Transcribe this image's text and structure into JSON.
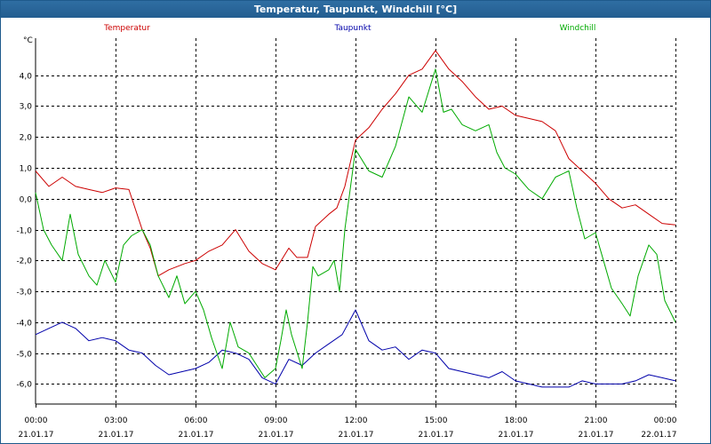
{
  "window": {
    "title": "Temperatur, Taupunkt, Windchill [°C]"
  },
  "chart_data": {
    "type": "line",
    "title": "Temperatur, Taupunkt, Windchill [°C]",
    "ylabel": "°C",
    "ylim": [
      -6.65,
      5.2
    ],
    "yticks": [
      4.0,
      3.0,
      2.0,
      1.0,
      0.0,
      -1.0,
      -2.0,
      -3.0,
      -4.0,
      -5.0,
      -6.0
    ],
    "ytick_labels": [
      "4,0",
      "3,0",
      "2,0",
      "1,0",
      "0,0",
      "-1,0",
      "-2,0",
      "-3,0",
      "-4,0",
      "-5,0",
      "-6,0"
    ],
    "xlim": [
      0,
      24
    ],
    "xticks": [
      0,
      3,
      6,
      9,
      12,
      15,
      18,
      21,
      24
    ],
    "xtick_times": [
      "00:00",
      "03:00",
      "06:00",
      "09:00",
      "12:00",
      "15:00",
      "18:00",
      "21:00",
      "00:00"
    ],
    "xtick_dates": [
      "21.01.17",
      "21.01.17",
      "21.01.17",
      "21.01.17",
      "21.01.17",
      "21.01.17",
      "21.01.17",
      "21.01.17",
      "22.01.17"
    ],
    "grid": true,
    "series": [
      {
        "name": "Temperatur",
        "color": "#cc0000",
        "x": [
          0,
          0.5,
          1,
          1.5,
          2,
          2.5,
          3,
          3.5,
          4,
          4.3,
          4.6,
          5,
          5.3,
          5.6,
          6,
          6.5,
          7,
          7.5,
          8,
          8.5,
          9,
          9.5,
          9.8,
          10.2,
          10.5,
          11,
          11.3,
          11.6,
          12,
          12.5,
          13,
          13.5,
          14,
          14.5,
          15,
          15.5,
          16,
          16.5,
          17,
          17.5,
          18,
          18.5,
          19,
          19.5,
          20,
          20.5,
          21,
          21.5,
          22,
          22.5,
          23,
          23.5,
          24
        ],
        "values": [
          0.9,
          0.4,
          0.7,
          0.4,
          0.3,
          0.2,
          0.35,
          0.3,
          -1.0,
          -1.6,
          -2.5,
          -2.3,
          -2.2,
          -2.1,
          -2.0,
          -1.7,
          -1.5,
          -1.0,
          -1.7,
          -2.1,
          -2.3,
          -1.6,
          -1.9,
          -1.9,
          -0.9,
          -0.5,
          -0.3,
          0.4,
          1.9,
          2.3,
          2.9,
          3.4,
          4.0,
          4.2,
          4.8,
          4.2,
          3.8,
          3.3,
          2.9,
          3.0,
          2.7,
          2.6,
          2.5,
          2.2,
          1.3,
          0.9,
          0.5,
          0.0,
          -0.3,
          -0.2,
          -0.5,
          -0.8,
          -0.85
        ]
      },
      {
        "name": "Taupunkt",
        "color": "#0000aa",
        "x": [
          0,
          0.5,
          1,
          1.5,
          2,
          2.5,
          3,
          3.5,
          4,
          4.5,
          5,
          5.5,
          6,
          6.5,
          7,
          7.5,
          8,
          8.5,
          9,
          9.5,
          10,
          10.5,
          11,
          11.5,
          12,
          12.5,
          13,
          13.5,
          14,
          14.5,
          15,
          15.5,
          16,
          16.5,
          17,
          17.5,
          18,
          18.5,
          19,
          19.5,
          20,
          20.5,
          21,
          21.5,
          22,
          22.5,
          23,
          23.5,
          24
        ],
        "values": [
          -4.4,
          -4.2,
          -4.0,
          -4.2,
          -4.6,
          -4.5,
          -4.6,
          -4.9,
          -5.0,
          -5.4,
          -5.7,
          -5.6,
          -5.5,
          -5.3,
          -4.9,
          -5.0,
          -5.2,
          -5.8,
          -6.0,
          -5.2,
          -5.4,
          -5.0,
          -4.7,
          -4.4,
          -3.6,
          -4.6,
          -4.9,
          -4.8,
          -5.2,
          -4.9,
          -5.0,
          -5.5,
          -5.6,
          -5.7,
          -5.8,
          -5.6,
          -5.9,
          -6.0,
          -6.1,
          -6.1,
          -6.1,
          -5.9,
          -6.0,
          -6.0,
          -6.0,
          -5.9,
          -5.7,
          -5.8,
          -5.9
        ]
      },
      {
        "name": "Windchill",
        "color": "#00aa00",
        "x": [
          0,
          0.3,
          0.6,
          1,
          1.3,
          1.6,
          2,
          2.3,
          2.6,
          3,
          3.3,
          3.6,
          4,
          4.3,
          4.6,
          5,
          5.3,
          5.6,
          6,
          6.3,
          6.6,
          7,
          7.3,
          7.6,
          8,
          8.3,
          8.6,
          9,
          9.2,
          9.4,
          9.6,
          10,
          10.2,
          10.4,
          10.6,
          11,
          11.2,
          11.4,
          11.6,
          12,
          12.5,
          13,
          13.5,
          14,
          14.5,
          15,
          15.3,
          15.6,
          16,
          16.5,
          17,
          17.3,
          17.6,
          18,
          18.5,
          19,
          19.5,
          20,
          20.3,
          20.6,
          21,
          21.3,
          21.6,
          22,
          22.3,
          22.6,
          23,
          23.3,
          23.6,
          24
        ],
        "values": [
          0.2,
          -1.0,
          -1.5,
          -2.0,
          -0.5,
          -1.8,
          -2.5,
          -2.8,
          -2.0,
          -2.7,
          -1.5,
          -1.2,
          -1.0,
          -1.5,
          -2.5,
          -3.2,
          -2.5,
          -3.4,
          -3.0,
          -3.6,
          -4.5,
          -5.5,
          -4.0,
          -4.8,
          -5.0,
          -5.4,
          -5.8,
          -5.5,
          -4.6,
          -3.6,
          -4.4,
          -5.5,
          -4.0,
          -2.2,
          -2.5,
          -2.3,
          -2.0,
          -3.0,
          -1.0,
          1.6,
          0.9,
          0.7,
          1.7,
          3.3,
          2.8,
          4.2,
          2.8,
          2.9,
          2.4,
          2.2,
          2.4,
          1.5,
          1.0,
          0.8,
          0.3,
          0.0,
          0.7,
          0.9,
          -0.3,
          -1.3,
          -1.1,
          -2.0,
          -2.9,
          -3.4,
          -3.8,
          -2.5,
          -1.5,
          -1.8,
          -3.3,
          -4.0
        ]
      }
    ]
  }
}
